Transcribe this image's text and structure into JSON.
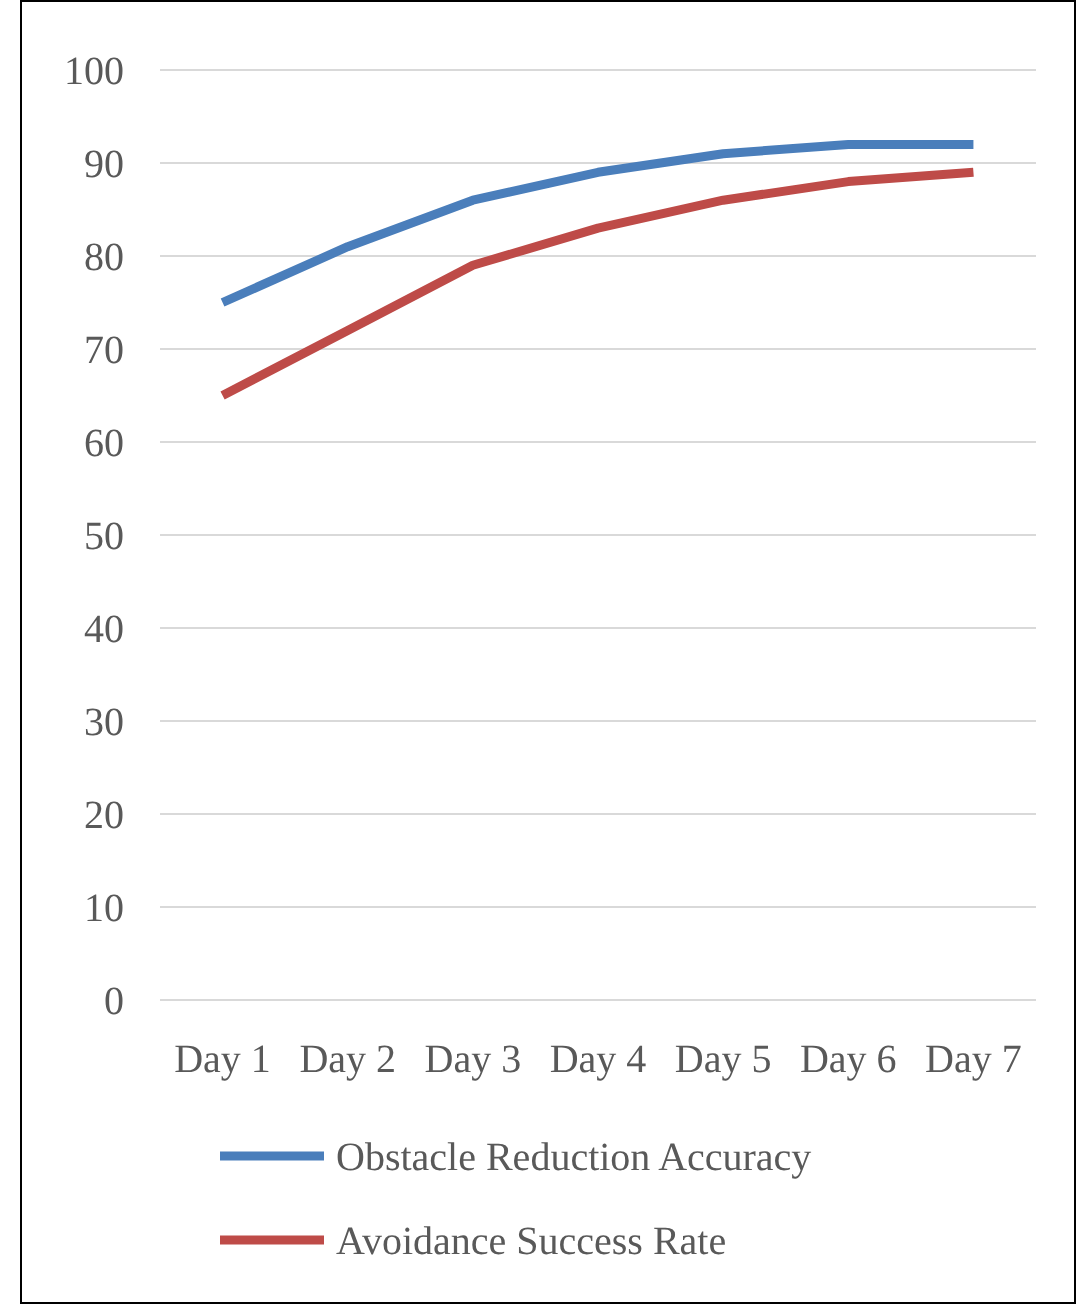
{
  "chart_data": {
    "type": "line",
    "categories": [
      "Day 1",
      "Day 2",
      "Day 3",
      "Day 4",
      "Day 5",
      "Day 6",
      "Day 7"
    ],
    "series": [
      {
        "name": "Obstacle Reduction Accuracy",
        "color": "#4a7ebb",
        "values": [
          75,
          81,
          86,
          89,
          91,
          92,
          92
        ]
      },
      {
        "name": "Avoidance Success Rate",
        "color": "#be4b48",
        "values": [
          65,
          72,
          79,
          83,
          86,
          88,
          89
        ]
      }
    ],
    "ylim": [
      0,
      100
    ],
    "yticks": [
      0,
      10,
      20,
      30,
      40,
      50,
      60,
      70,
      80,
      90,
      100
    ],
    "grid": "y",
    "legend": "bottom",
    "marker": "none",
    "line_style": "solid"
  }
}
